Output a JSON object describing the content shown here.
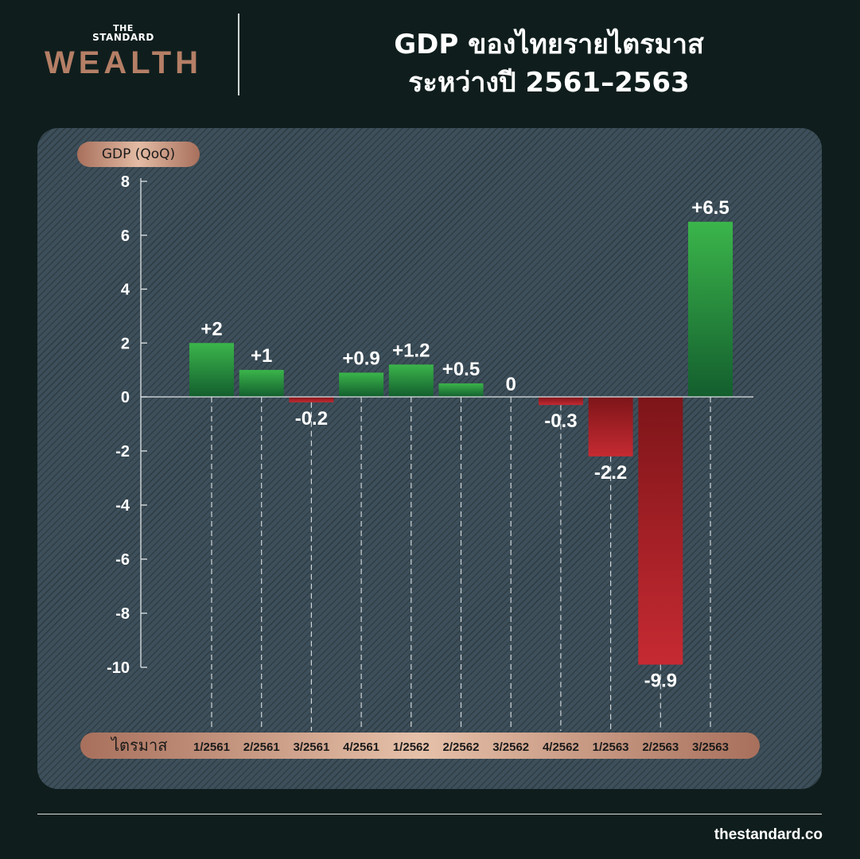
{
  "logo": {
    "line1": "THE",
    "line2": "STANDARD",
    "brand": "WEALTH"
  },
  "header": {
    "title_line1": "GDP ของไทยรายไตรมาส",
    "title_line2": "ระหว่างปี 2561–2563"
  },
  "footer": {
    "url": "thestandard.co"
  },
  "colors": {
    "positive": "#2a9a45",
    "negative": "#b0242b",
    "accent": "#c89078",
    "background": "#0f1e1d"
  },
  "chart_data": {
    "type": "bar",
    "title": "GDP ของไทยรายไตรมาส ระหว่างปี 2561–2563",
    "ylabel": "GDP (QoQ)",
    "xlabel": "ไตรมาส",
    "ylim": [
      -10,
      8
    ],
    "yticks": [
      "8",
      "6",
      "4",
      "2",
      "0",
      "-2",
      "-4",
      "-6",
      "-8",
      "-10"
    ],
    "categories": [
      "1/2561",
      "2/2561",
      "3/2561",
      "4/2561",
      "1/2562",
      "2/2562",
      "3/2562",
      "4/2562",
      "1/2563",
      "2/2563",
      "3/2563"
    ],
    "values": [
      2,
      1,
      -0.2,
      0.9,
      1.2,
      0.5,
      0,
      -0.3,
      -2.2,
      -9.9,
      6.5
    ],
    "labels": [
      "+2",
      "+1",
      "-0.2",
      "+0.9",
      "+1.2",
      "+0.5",
      "0",
      "-0.3",
      "-2.2",
      "-9.9",
      "+6.5"
    ]
  }
}
